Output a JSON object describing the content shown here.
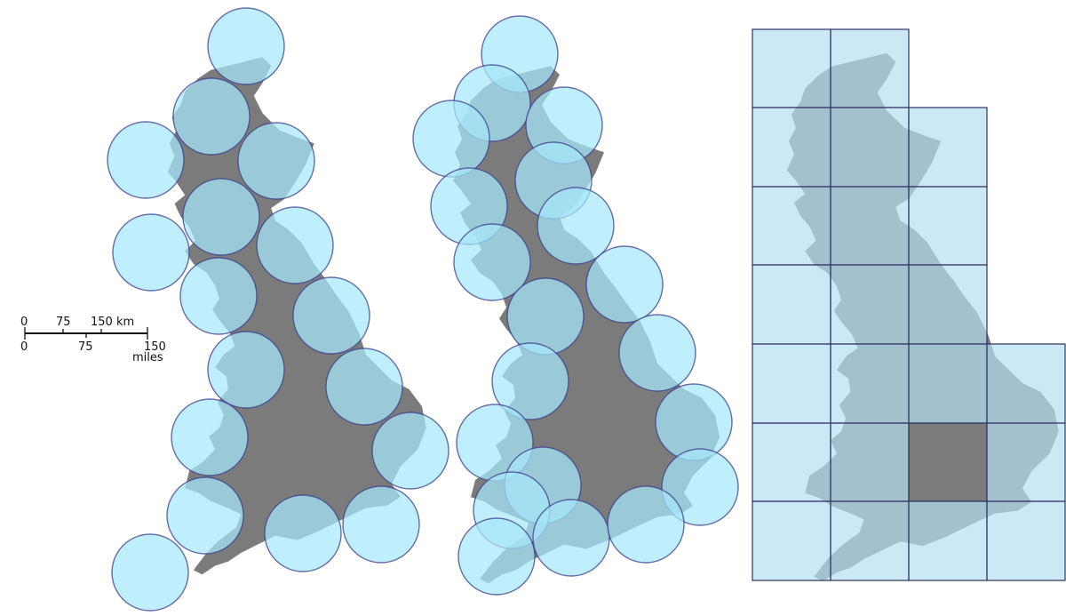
{
  "scale_bar": {
    "km_labels": [
      "0",
      "75",
      "150 km"
    ],
    "mile_labels": [
      "0",
      "75",
      "150"
    ],
    "miles_unit": "miles"
  },
  "maps": [
    {
      "id": "map-circles-a",
      "coverage_type": "circles",
      "circle_count": 18
    },
    {
      "id": "map-circles-b",
      "coverage_type": "circles",
      "circle_count": 20
    },
    {
      "id": "map-grid",
      "coverage_type": "rectangular-grid",
      "cell_count": 30
    }
  ],
  "colors": {
    "land": "#7b7b7b",
    "circle_fill": "#a6e7fb",
    "circle_stroke": "#3b3e8c",
    "grid_fill": "#b3dff0",
    "grid_stroke": "#2e3063"
  }
}
